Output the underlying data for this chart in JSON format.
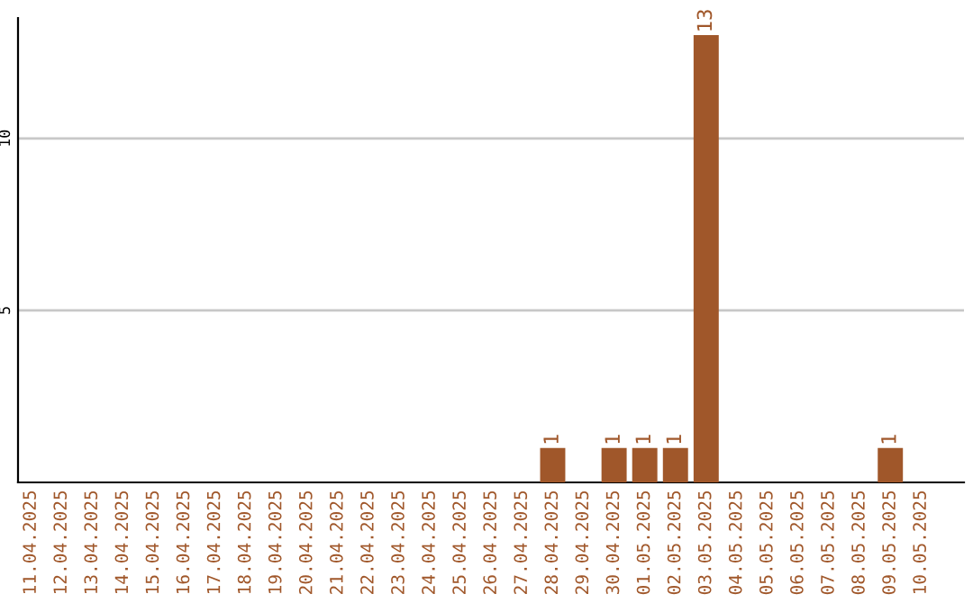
{
  "chart_data": {
    "type": "bar",
    "categories": [
      "11.04.2025",
      "12.04.2025",
      "13.04.2025",
      "14.04.2025",
      "15.04.2025",
      "16.04.2025",
      "17.04.2025",
      "18.04.2025",
      "19.04.2025",
      "20.04.2025",
      "21.04.2025",
      "22.04.2025",
      "23.04.2025",
      "24.04.2025",
      "25.04.2025",
      "26.04.2025",
      "27.04.2025",
      "28.04.2025",
      "29.04.2025",
      "30.04.2025",
      "01.05.2025",
      "02.05.2025",
      "03.05.2025",
      "04.05.2025",
      "05.05.2025",
      "06.05.2025",
      "07.05.2025",
      "08.05.2025",
      "09.05.2025",
      "10.05.2025"
    ],
    "values": [
      0,
      0,
      0,
      0,
      0,
      0,
      0,
      0,
      0,
      0,
      0,
      0,
      0,
      0,
      0,
      0,
      0,
      1,
      0,
      1,
      1,
      1,
      13,
      0,
      0,
      0,
      0,
      0,
      1,
      0
    ],
    "value_labels": [
      null,
      null,
      null,
      null,
      null,
      null,
      null,
      null,
      null,
      null,
      null,
      null,
      null,
      null,
      null,
      null,
      null,
      "1",
      null,
      "1",
      "1",
      "1",
      "13",
      null,
      null,
      null,
      null,
      null,
      "1",
      null
    ],
    "color": "#a0572a",
    "ylim": [
      0,
      13.5
    ],
    "yticks": [
      5,
      10
    ],
    "grid": "y"
  }
}
